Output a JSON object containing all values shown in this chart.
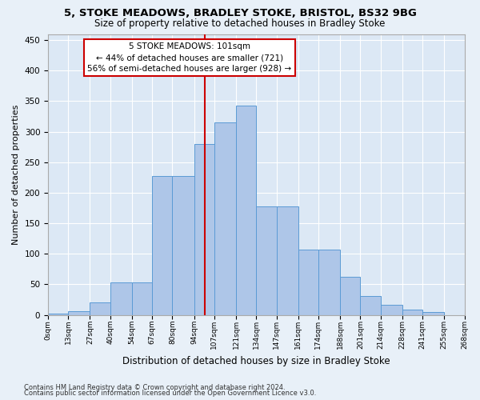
{
  "title1": "5, STOKE MEADOWS, BRADLEY STOKE, BRISTOL, BS32 9BG",
  "title2": "Size of property relative to detached houses in Bradley Stoke",
  "xlabel": "Distribution of detached houses by size in Bradley Stoke",
  "ylabel": "Number of detached properties",
  "annotation_title": "5 STOKE MEADOWS: 101sqm",
  "annotation_line1": "← 44% of detached houses are smaller (721)",
  "annotation_line2": "56% of semi-detached houses are larger (928) →",
  "property_value": 101,
  "bin_edges": [
    0,
    13,
    27,
    40,
    54,
    67,
    80,
    94,
    107,
    121,
    134,
    147,
    161,
    174,
    188,
    201,
    214,
    228,
    241,
    255,
    268
  ],
  "bar_heights": [
    2,
    6,
    20,
    53,
    53,
    228,
    228,
    280,
    315,
    343,
    178,
    178,
    107,
    107,
    62,
    31,
    16,
    8,
    5,
    0
  ],
  "bar_color": "#aec6e8",
  "bar_edge_color": "#5b9bd5",
  "vline_color": "#cc0000",
  "vline_x": 101,
  "annotation_box_color": "#ffffff",
  "annotation_box_edge": "#cc0000",
  "bg_color": "#dce8f5",
  "grid_color": "#ffffff",
  "fig_bg_color": "#e8f0f8",
  "ylim": [
    0,
    460
  ],
  "yticks": [
    0,
    50,
    100,
    150,
    200,
    250,
    300,
    350,
    400,
    450
  ],
  "footer1": "Contains HM Land Registry data © Crown copyright and database right 2024.",
  "footer2": "Contains public sector information licensed under the Open Government Licence v3.0."
}
